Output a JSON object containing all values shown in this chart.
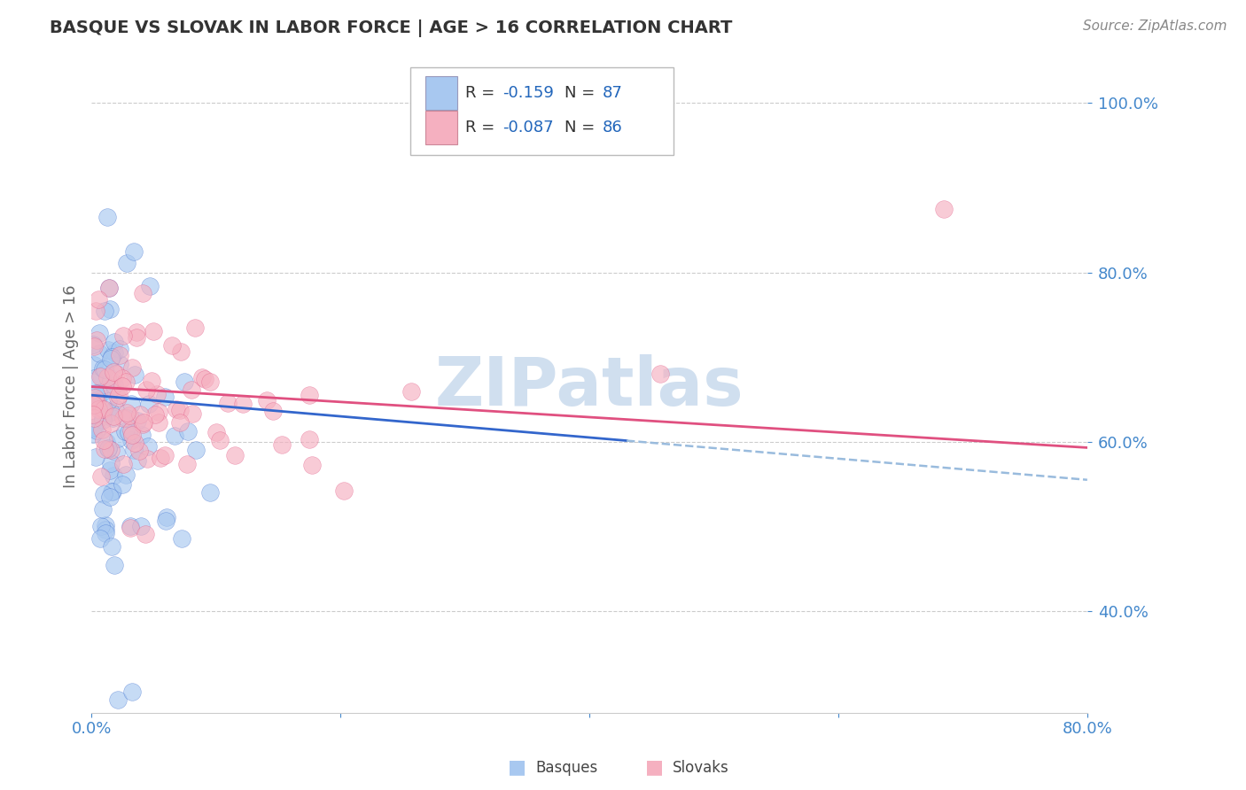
{
  "title": "BASQUE VS SLOVAK IN LABOR FORCE | AGE > 16 CORRELATION CHART",
  "source_text": "Source: ZipAtlas.com",
  "ylabel": "In Labor Force | Age > 16",
  "xlim": [
    0.0,
    0.8
  ],
  "ylim": [
    0.28,
    1.05
  ],
  "xticks": [
    0.0,
    0.2,
    0.4,
    0.6,
    0.8
  ],
  "xticklabels": [
    "0.0%",
    "",
    "",
    "",
    "80.0%"
  ],
  "yticks": [
    0.4,
    0.6,
    0.8,
    1.0
  ],
  "yticklabels": [
    "40.0%",
    "60.0%",
    "80.0%",
    "100.0%"
  ],
  "basque_R": -0.159,
  "basque_N": 87,
  "slovak_R": -0.087,
  "slovak_N": 86,
  "basque_color": "#A8C8F0",
  "slovak_color": "#F5B0C0",
  "basque_line_color": "#3366CC",
  "slovak_line_color": "#E05080",
  "dash_line_color": "#99BBDD",
  "watermark_text": "ZIPatlas",
  "watermark_color": "#D0DFEF",
  "background_color": "#FFFFFF",
  "grid_color": "#CCCCCC",
  "title_color": "#333333",
  "axis_label_color": "#666666",
  "tick_label_color": "#4488CC",
  "legend_R_color": "#2266BB",
  "legend_N_color": "#2266BB"
}
